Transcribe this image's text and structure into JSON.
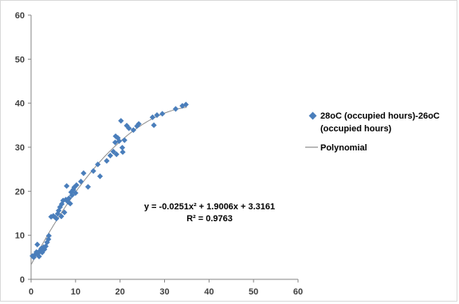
{
  "chart_data": {
    "type": "scatter",
    "title": "",
    "xlabel": "",
    "ylabel": "",
    "xlim": [
      0,
      60
    ],
    "ylim": [
      0,
      60
    ],
    "xticks": [
      0,
      10,
      20,
      30,
      40,
      50,
      60
    ],
    "yticks": [
      0,
      10,
      20,
      30,
      40,
      50,
      60
    ],
    "grid": false,
    "legend_position": "right",
    "series": [
      {
        "name": "28oC (occupied hours)-26oC (occupied hours)",
        "legend_lines": [
          "28oC (occupied hours)-26oC",
          "(occupied hours)"
        ],
        "marker": "diamond",
        "color": "#4a7ebb",
        "points": [
          [
            0.3,
            5.3
          ],
          [
            0.6,
            5.0
          ],
          [
            0.9,
            5.6
          ],
          [
            1.2,
            6.2
          ],
          [
            1.5,
            5.8
          ],
          [
            1.4,
            7.9
          ],
          [
            1.8,
            5.2
          ],
          [
            2.0,
            6.5
          ],
          [
            2.3,
            7.0
          ],
          [
            2.5,
            6.1
          ],
          [
            2.8,
            7.3
          ],
          [
            3.0,
            6.8
          ],
          [
            3.3,
            7.5
          ],
          [
            3.6,
            8.4
          ],
          [
            3.9,
            9.1
          ],
          [
            4.0,
            9.9
          ],
          [
            4.5,
            14.2
          ],
          [
            5.0,
            14.4
          ],
          [
            5.4,
            14.1
          ],
          [
            5.7,
            13.8
          ],
          [
            6.0,
            14.9
          ],
          [
            6.2,
            15.6
          ],
          [
            6.5,
            16.4
          ],
          [
            6.8,
            14.3
          ],
          [
            6.9,
            17.1
          ],
          [
            7.2,
            17.9
          ],
          [
            7.5,
            15.2
          ],
          [
            7.8,
            18.1
          ],
          [
            8.0,
            21.2
          ],
          [
            8.3,
            17.6
          ],
          [
            8.5,
            18.4
          ],
          [
            8.8,
            17.2
          ],
          [
            9.0,
            19.8
          ],
          [
            9.2,
            19.1
          ],
          [
            9.5,
            20.4
          ],
          [
            9.7,
            20.9
          ],
          [
            10.0,
            19.6
          ],
          [
            10.2,
            21.4
          ],
          [
            11.2,
            22.2
          ],
          [
            11.8,
            24.1
          ],
          [
            12.8,
            21.0
          ],
          [
            14.0,
            24.6
          ],
          [
            15.0,
            26.1
          ],
          [
            15.5,
            23.4
          ],
          [
            17.0,
            26.9
          ],
          [
            17.8,
            28.1
          ],
          [
            18.5,
            29.0
          ],
          [
            18.9,
            31.1
          ],
          [
            19.0,
            32.5
          ],
          [
            19.2,
            28.4
          ],
          [
            19.5,
            32.1
          ],
          [
            19.8,
            31.4
          ],
          [
            20.2,
            36.0
          ],
          [
            20.5,
            29.9
          ],
          [
            20.6,
            28.9
          ],
          [
            21.0,
            31.6
          ],
          [
            21.5,
            34.9
          ],
          [
            22.0,
            34.3
          ],
          [
            23.0,
            33.9
          ],
          [
            23.8,
            34.8
          ],
          [
            24.2,
            35.3
          ],
          [
            27.3,
            36.8
          ],
          [
            27.6,
            35.0
          ],
          [
            28.3,
            37.3
          ],
          [
            29.5,
            37.6
          ],
          [
            32.5,
            38.7
          ],
          [
            34.0,
            39.4
          ],
          [
            34.8,
            39.7
          ]
        ]
      },
      {
        "name": "Polynomial",
        "type": "trendline",
        "color": "#8c8c8c",
        "coefficients": {
          "a": -0.0251,
          "b": 1.9006,
          "c": 3.3161
        },
        "x_range": [
          0,
          35
        ]
      }
    ],
    "annotations": {
      "equation": "y = -0.0251x² + 1.9006x + 3.3161",
      "r_squared": "R² = 0.9763"
    }
  }
}
